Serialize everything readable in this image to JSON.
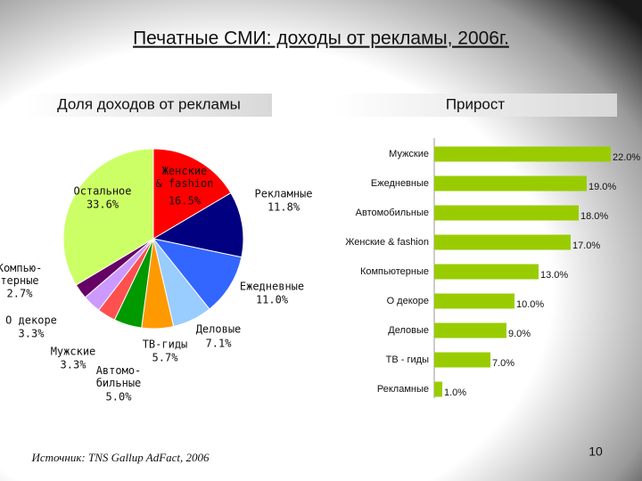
{
  "title": "Печатные СМИ: доходы от рекламы, 2006г.",
  "headers": {
    "left": "Доля доходов от рекламы",
    "right": "Прирост"
  },
  "source": "Источник: TNS Gallup AdFact, 2006",
  "page_number": 10,
  "chart_data": [
    {
      "type": "pie",
      "categories": [
        "Женские\n& fashion",
        "Рекламные",
        "Ежедневные",
        "Деловые",
        "ТВ-гиды",
        "Автомо-\nбильные",
        "Мужские",
        "О декоре",
        "Компью-\nтерные",
        "Остальное"
      ],
      "values": [
        16.5,
        11.8,
        11.0,
        7.1,
        5.7,
        5.0,
        3.3,
        3.3,
        2.7,
        33.6
      ],
      "value_labels": [
        "16.5%",
        "11.8%",
        "11.0%",
        "7.1%",
        "5.7%",
        "5.0%",
        "3.3%",
        "3.3%",
        "2.7%",
        "33.6%"
      ],
      "colors": [
        "#ff0000",
        "#000080",
        "#3366ff",
        "#99ccff",
        "#ff9900",
        "#009900",
        "#ff5050",
        "#cc99ff",
        "#660066",
        "#ccff66"
      ]
    },
    {
      "type": "bar",
      "categories": [
        "Мужские",
        "Ежедневные",
        "Автомобильные",
        "Женские & fashion",
        "Компьютерные",
        "О декоре",
        "Деловые",
        "ТВ - гиды",
        "Рекламные"
      ],
      "values": [
        22.0,
        19.0,
        18.0,
        17.0,
        13.0,
        10.0,
        9.0,
        7.0,
        1.0
      ],
      "value_labels": [
        "22.0%",
        "19.0%",
        "18.0%",
        "17.0%",
        "13.0%",
        "10.0%",
        "9.0%",
        "7.0%",
        "1.0%"
      ],
      "color": "#99cc00",
      "xlim": [
        0,
        22
      ]
    }
  ]
}
